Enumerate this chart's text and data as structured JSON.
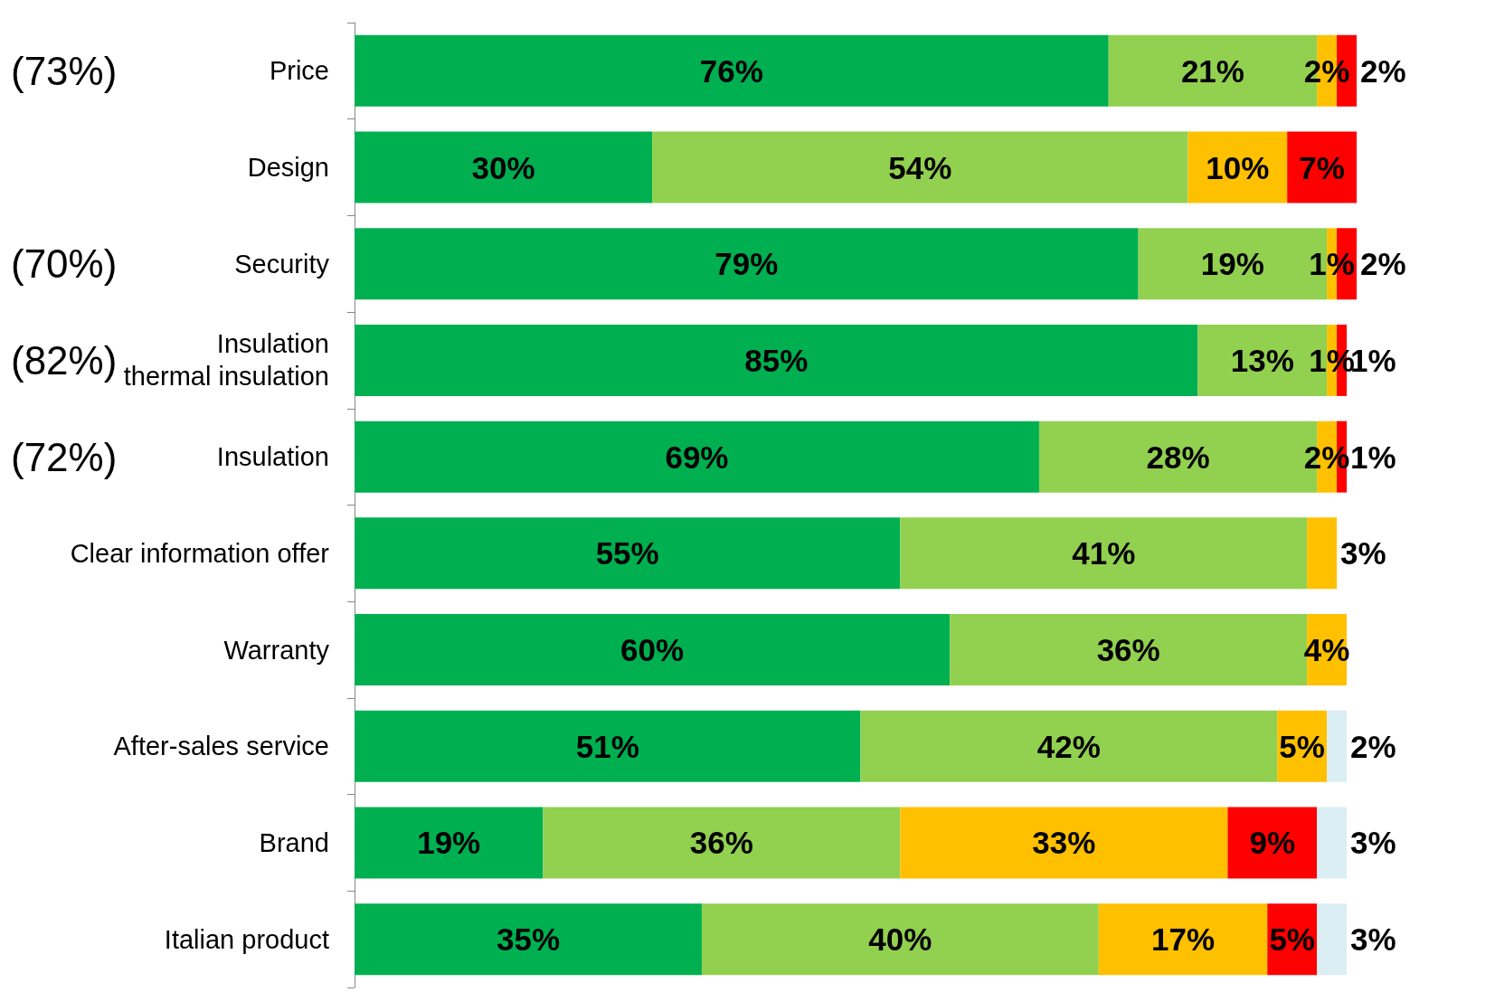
{
  "chart_data": {
    "type": "bar",
    "orientation": "horizontal",
    "stacked": true,
    "categories": [
      "Price",
      "Design",
      "Security",
      "Insulation\nthermal insulation",
      "Insulation",
      "Clear information offer",
      "Warranty",
      "After-sales service",
      "Brand",
      "Italian product"
    ],
    "series": [
      {
        "color": "#00b050",
        "values": [
          76,
          30,
          79,
          85,
          69,
          55,
          60,
          51,
          19,
          35
        ],
        "value_labels": [
          "76%",
          "30%",
          "79%",
          "85%",
          "69%",
          "55%",
          "60%",
          "51%",
          "19%",
          "35%"
        ]
      },
      {
        "color": "#92d050",
        "values": [
          21,
          54,
          19,
          13,
          28,
          41,
          36,
          42,
          36,
          40
        ],
        "value_labels": [
          "21%",
          "54%",
          "19%",
          "13%",
          "28%",
          "41%",
          "36%",
          "42%",
          "36%",
          "40%"
        ]
      },
      {
        "color": "#ffc000",
        "values": [
          2,
          10,
          1,
          1,
          2,
          3,
          4,
          5,
          33,
          17
        ],
        "value_labels": [
          "2%",
          "10%",
          "1%",
          "1%",
          "2%",
          "3%",
          "4%",
          "5%",
          "33%",
          "17%"
        ]
      },
      {
        "color": "#ff0000",
        "values": [
          2,
          7,
          2,
          1,
          1,
          null,
          null,
          null,
          9,
          5
        ],
        "value_labels": [
          "2%",
          "7%",
          "2%",
          "1%",
          "1%",
          null,
          null,
          null,
          "9%",
          "5%"
        ]
      },
      {
        "color": "#dbeef4",
        "values": [
          null,
          null,
          null,
          null,
          null,
          null,
          null,
          2,
          3,
          3
        ],
        "value_labels": [
          null,
          null,
          null,
          null,
          null,
          null,
          null,
          "2%",
          "3%",
          "3%"
        ]
      }
    ],
    "annotations": [
      "(73%)",
      "(70%)",
      "(82%)",
      "(72%)"
    ]
  }
}
